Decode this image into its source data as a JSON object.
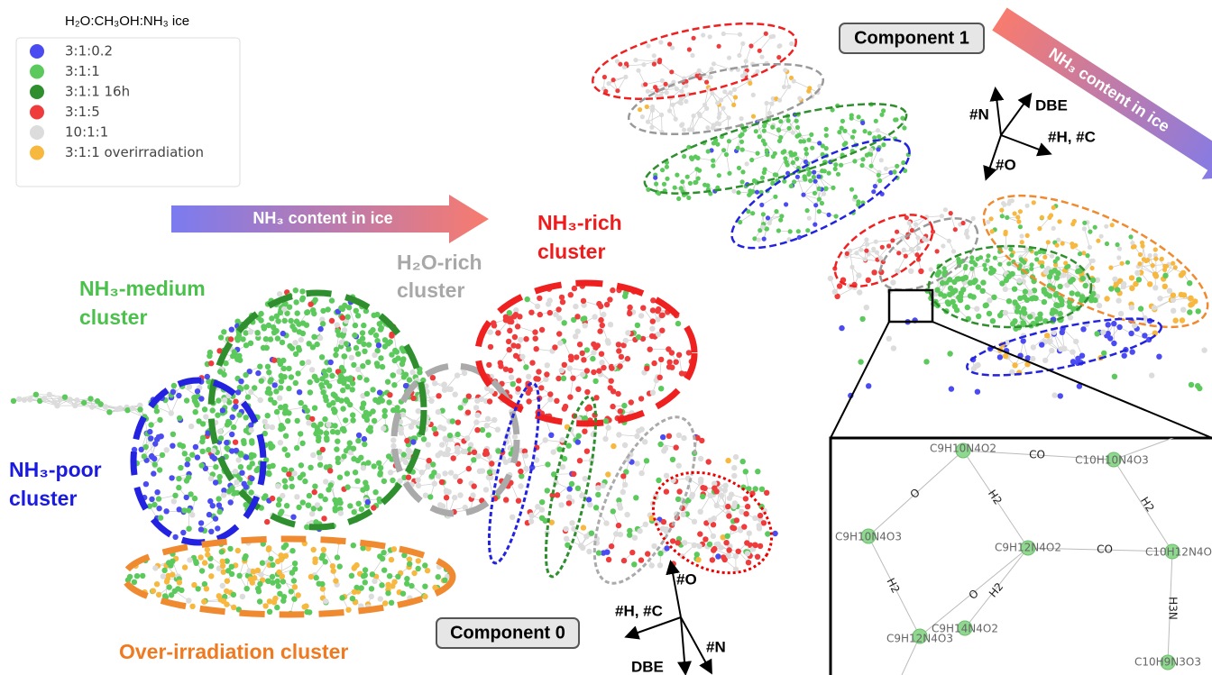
{
  "legend": {
    "title": "H₂O:CH₃OH:NH₃ ice",
    "items": [
      {
        "label": "3:1:0.2",
        "color": "#4b4bf2"
      },
      {
        "label": "3:1:1",
        "color": "#5cc95c"
      },
      {
        "label": "3:1:1 16h",
        "color": "#2f8f2f"
      },
      {
        "label": "3:1:5",
        "color": "#ef3b3b"
      },
      {
        "label": "10:1:1",
        "color": "#dcdcdc"
      },
      {
        "label": "3:1:1 overirradiation",
        "color": "#f7b840"
      }
    ]
  },
  "arrows": [
    "NH₃ content in ice",
    "NH₃ content in ice"
  ],
  "clusters": {
    "medium": [
      "NH₃-medium",
      "cluster"
    ],
    "water": [
      "H₂O-rich",
      "cluster"
    ],
    "rich": [
      "NH₃-rich",
      "cluster"
    ],
    "poor": [
      "NH₃-poor",
      "cluster"
    ],
    "over": "Over-irradiation cluster"
  },
  "components": [
    "Component 0",
    "Component 1"
  ],
  "axes1": {
    "n": "#N",
    "dbe": "DBE",
    "hc": "#H, #C",
    "o": "#O"
  },
  "axes0": {
    "o": "#O",
    "hc": "#H, #C",
    "n": "#N",
    "dbe": "DBE"
  },
  "inset": {
    "nodes": [
      "C9H10N4O2",
      "C10H10N4O3",
      "C9H10N4O3",
      "C9H12N4O2",
      "C10H12N4O",
      "C9H14N4O2",
      "C9H12N4O3",
      "C10H9N3O3"
    ],
    "edges": [
      "CO",
      "O",
      "H2",
      "H2",
      "CO",
      "O",
      "H2",
      "H2",
      "H3N"
    ]
  }
}
